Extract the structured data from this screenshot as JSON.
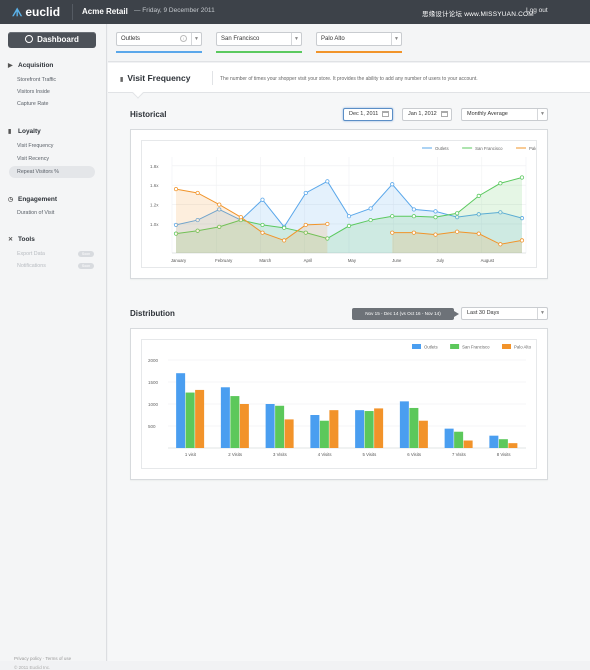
{
  "topbar": {
    "brand": "euclid",
    "client": "Acme Retail",
    "date": "— Friday, 9 December 2011",
    "watermark": "思缘设计论坛 www.MISSYUAN.COM",
    "logout": "Log out"
  },
  "sidebar": {
    "dashboard": "Dashboard",
    "sections": [
      {
        "title": "Acquisition",
        "icon": "megaphone-icon",
        "items": [
          "Storefront Traffic",
          "Visitors Inside",
          "Capture Rate"
        ]
      },
      {
        "title": "Loyalty",
        "icon": "phone-icon",
        "items": [
          "Visit Frequency",
          "Visit Recency",
          "Repeat Visitors %"
        ]
      },
      {
        "title": "Engagement",
        "icon": "clock-icon",
        "items": [
          "Duration of Visit"
        ]
      },
      {
        "title": "Tools",
        "icon": "tools-icon",
        "items": [
          "Export Data",
          "Notifications"
        ]
      }
    ],
    "soon": "Soon",
    "footer_links": "Privacy policy · Terms of use",
    "copyright": "© 2011 Euclid Inc."
  },
  "filters": [
    {
      "value": "Outlets",
      "color": "#5aa7ea"
    },
    {
      "value": "San Francisco",
      "color": "#5bc95f"
    },
    {
      "value": "Palo Alto",
      "color": "#f1942a"
    }
  ],
  "page": {
    "title": "Visit Frequency",
    "description": "The number of times your shopper visit your store. It provides the ability to add any number of users to your account."
  },
  "historical": {
    "title": "Historical",
    "from": "Dec 1, 2011",
    "to": "Jan 1, 2012",
    "mode": "Monthly Average"
  },
  "distribution": {
    "title": "Distribution",
    "range_badge": "Nov 15 - Dec 14 (vs Oct 16 - Nov 14)",
    "range": "Last 30 Days"
  },
  "chart_data": [
    {
      "type": "area",
      "legend_placement": "top-right",
      "grid": true,
      "x_labels": [
        "January",
        "February",
        "March",
        "April",
        "May",
        "June",
        "July",
        "August"
      ],
      "y_ticks": [
        "1.8x",
        "1.6x",
        "1.2x",
        "1.0x"
      ],
      "series": [
        {
          "name": "Outlets",
          "color": "#5aa7ea",
          "values": [
            1.19,
            1.24,
            1.35,
            1.24,
            1.45,
            1.17,
            1.52,
            1.64,
            1.28,
            1.36,
            1.61,
            1.35,
            1.33,
            1.27,
            1.3,
            1.32,
            1.26
          ]
        },
        {
          "name": "San Francisco",
          "color": "#5bc95f",
          "values": [
            1.1,
            1.13,
            1.17,
            1.24,
            1.19,
            1.16,
            1.11,
            1.05,
            1.18,
            1.24,
            1.28,
            1.28,
            1.27,
            1.31,
            1.49,
            1.62,
            1.68
          ]
        },
        {
          "name": "Palo Alto",
          "color": "#f1942a",
          "values": [
            1.56,
            1.52,
            1.4,
            1.27,
            1.11,
            1.03,
            1.19,
            1.2,
            null,
            null,
            1.11,
            1.11,
            1.09,
            1.12,
            1.1,
            0.99,
            1.03
          ]
        }
      ]
    },
    {
      "type": "bar",
      "legend_placement": "top-right",
      "grid": true,
      "categories": [
        "1 visit",
        "2 Visits",
        "3 Visits",
        "4 Visits",
        "5 Visits",
        "6 Visits",
        "7 Visits",
        "8 Visits"
      ],
      "y_ticks": [
        2000,
        1500,
        1000,
        500
      ],
      "ylim": [
        0,
        2000
      ],
      "series": [
        {
          "name": "Outlets",
          "color": "#4a9ef0",
          "values": [
            1700,
            1380,
            1000,
            750,
            860,
            1060,
            440,
            280
          ]
        },
        {
          "name": "San Francisco",
          "color": "#5cc85b",
          "values": [
            1260,
            1180,
            960,
            620,
            840,
            910,
            370,
            200
          ]
        },
        {
          "name": "Palo Alto",
          "color": "#f2932a",
          "values": [
            1320,
            1000,
            650,
            860,
            900,
            620,
            170,
            110
          ]
        }
      ]
    }
  ]
}
